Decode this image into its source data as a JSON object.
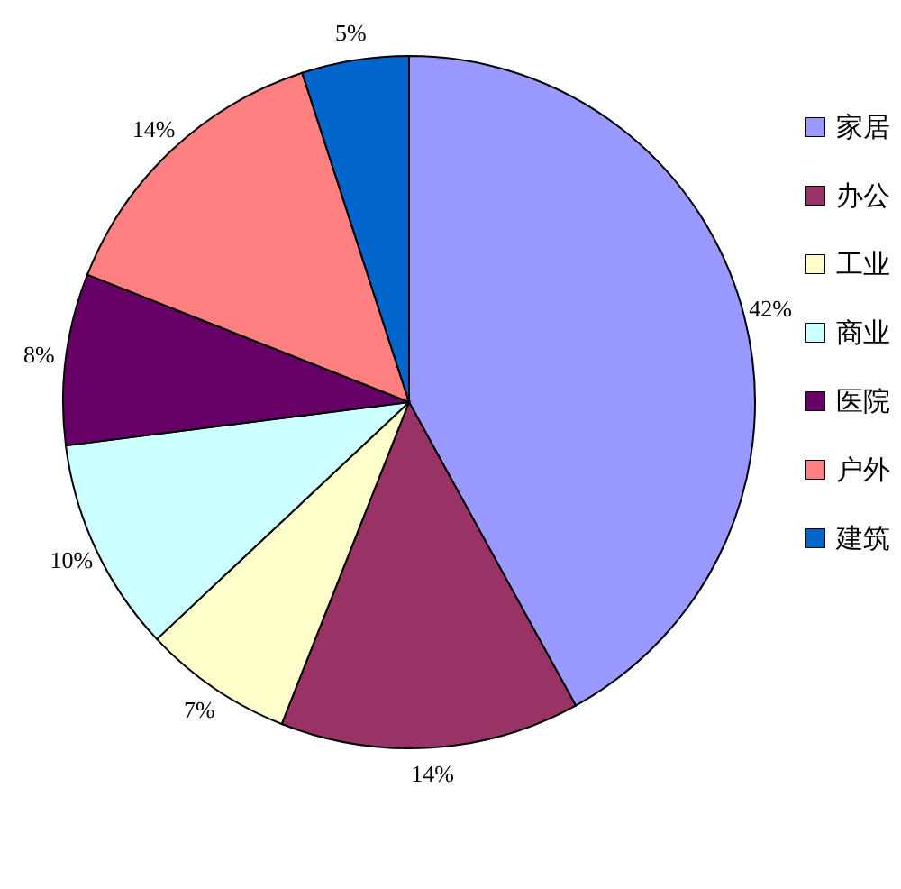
{
  "chart_data": {
    "type": "pie",
    "categories": [
      "家居",
      "办公",
      "工业",
      "商业",
      "医院",
      "户外",
      "建筑"
    ],
    "values": [
      42,
      14,
      7,
      10,
      8,
      14,
      5
    ],
    "colors": [
      "#9999ff",
      "#993366",
      "#ffffcc",
      "#ccffff",
      "#660066",
      "#ff8080",
      "#0066cc"
    ],
    "value_labels": [
      "42%",
      "14%",
      "7%",
      "10%",
      "8%",
      "14%",
      "5%"
    ],
    "legend": "right"
  }
}
